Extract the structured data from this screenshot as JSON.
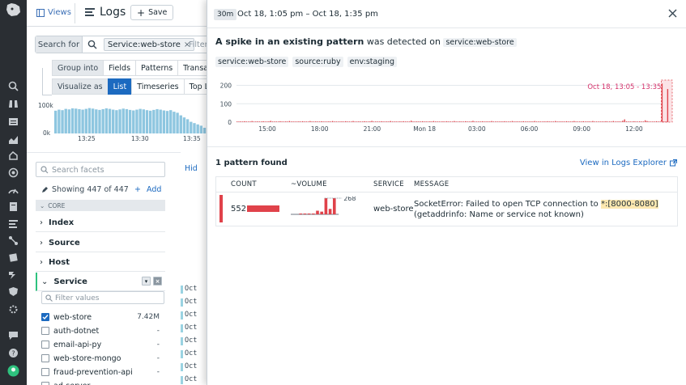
{
  "header": {
    "views_label": "Views",
    "title": "Logs",
    "save_label": "Save"
  },
  "search": {
    "search_for_label": "Search for",
    "query_chip": "Service:web-store",
    "filter_placeholder": "Filter"
  },
  "controls": {
    "group_into_label": "Group into",
    "group_options": [
      "Fields",
      "Patterns",
      "Transaction"
    ],
    "visualize_label": "Visualize as",
    "visualize_options": [
      "List",
      "Timeseries",
      "Top List"
    ],
    "visualize_selected": "List"
  },
  "bg_histogram": {
    "y_labels": [
      "100k",
      "0k"
    ],
    "x_labels": [
      "13:25",
      "13:30",
      "13:35"
    ]
  },
  "facets": {
    "search_placeholder": "Search facets",
    "showing": "Showing 447 of 447",
    "add_label": "Add",
    "core_label": "CORE",
    "groups": [
      "Index",
      "Source",
      "Host",
      "Service"
    ],
    "filter_values_placeholder": "Filter values",
    "service_values": [
      {
        "name": "web-store",
        "count": "7.42M",
        "checked": true
      },
      {
        "name": "auth-dotnet",
        "count": "-",
        "checked": false
      },
      {
        "name": "email-api-py",
        "count": "-",
        "checked": false
      },
      {
        "name": "web-store-mongo",
        "count": "-",
        "checked": false
      },
      {
        "name": "fraud-prevention-api",
        "count": "-",
        "checked": false
      },
      {
        "name": "ad-server",
        "count": "-",
        "checked": false
      }
    ]
  },
  "loglist": {
    "hide_label": "Hid",
    "row_label": "Oct"
  },
  "panel": {
    "time_chip": "30m",
    "time_range": "Oct 18, 1:05 pm – Oct 18, 1:35 pm",
    "spike_bold": "A spike in an existing pattern",
    "spike_rest": "was detected on",
    "spike_service": "service:web-store",
    "tags": [
      "service:web-store",
      "source:ruby",
      "env:staging"
    ],
    "pattern_count": "1 pattern found",
    "view_link": "View in Logs Explorer",
    "table_headers": [
      "COUNT",
      "~VOLUME",
      "SERVICE",
      "MESSAGE"
    ],
    "row": {
      "count": "552",
      "volume_peak_label": "268",
      "service": "web-store",
      "message_pre": "SocketError: Failed to open TCP connection to ",
      "message_hl": "*:[8000-8080]",
      "message_post": " (getaddrinfo: Name or service not known)"
    },
    "colors": {
      "accent": "#e0424a",
      "link": "#1c6ac0",
      "selected": "#1c6ac0"
    }
  },
  "chart_data": {
    "type": "bar",
    "title": "",
    "highlight_label": "Oct 18, 13:05 - 13:35",
    "y_ticks": [
      0,
      100,
      200
    ],
    "ylim": [
      0,
      220
    ],
    "x_tick_labels": [
      "15:00",
      "18:00",
      "21:00",
      "Mon 18",
      "03:00",
      "06:00",
      "09:00",
      "12:00"
    ],
    "series": [
      {
        "values": [
          3,
          1,
          4,
          2,
          5,
          1,
          3,
          2,
          6,
          1,
          2,
          4,
          1,
          3,
          5,
          2,
          1,
          4,
          7,
          2,
          3,
          1,
          2,
          5,
          3,
          1,
          4,
          2,
          6,
          1,
          3,
          2,
          1,
          4,
          2,
          5,
          1,
          3,
          2,
          6,
          1,
          2,
          4,
          3,
          1,
          5,
          2,
          3,
          1,
          4,
          2,
          6,
          1,
          3,
          2,
          1,
          4,
          2,
          5,
          1,
          3,
          2,
          6,
          1,
          2,
          4,
          1,
          3,
          5,
          2,
          1,
          4,
          7,
          2,
          3,
          1,
          2,
          5,
          3,
          1,
          4,
          2,
          6,
          1,
          3,
          2,
          1,
          4,
          2,
          5,
          1,
          3,
          2,
          8,
          1,
          2,
          4,
          3,
          1,
          5,
          2,
          3,
          1,
          4,
          2,
          6,
          1,
          3,
          2,
          1,
          4,
          2,
          5,
          1,
          3,
          2,
          6,
          1,
          2,
          4,
          1,
          3,
          5,
          2,
          1,
          4,
          7,
          2,
          3,
          1,
          2,
          5,
          3,
          1,
          4,
          2,
          6,
          1,
          3,
          2,
          1,
          4,
          2,
          5,
          1,
          3,
          2,
          6,
          1,
          2,
          4,
          3,
          1,
          5,
          2,
          3,
          1,
          4,
          2,
          6,
          1,
          3,
          2,
          1,
          4,
          2,
          5,
          1,
          3,
          2,
          6,
          1,
          2,
          4,
          1,
          3,
          5,
          2,
          1,
          4,
          6,
          2,
          3,
          1,
          2,
          5,
          3,
          1,
          4,
          2,
          6,
          1,
          3,
          2,
          1,
          4,
          2,
          5,
          1,
          3,
          2,
          6,
          1,
          2,
          4,
          3,
          8,
          15,
          4,
          2,
          1,
          3,
          5,
          2,
          1,
          4,
          2,
          3,
          10,
          6,
          2,
          3,
          1,
          2,
          5,
          3,
          2,
          210,
          2,
          1,
          180
        ]
      }
    ]
  },
  "volume_sparkline": {
    "values": [
      0,
      0,
      2,
      1,
      4,
      3,
      60,
      45,
      268,
      90,
      268
    ]
  },
  "bg_histogram_data": {
    "values": [
      88,
      92,
      90,
      95,
      93,
      97,
      96,
      94,
      92,
      95,
      98,
      96,
      93,
      91,
      94,
      97,
      95,
      92,
      90,
      93,
      96,
      94,
      91,
      89,
      92,
      95,
      93,
      90,
      88,
      91,
      94,
      92,
      89,
      87,
      90,
      84,
      80,
      70,
      62,
      55,
      45,
      40,
      35,
      30,
      22
    ]
  }
}
